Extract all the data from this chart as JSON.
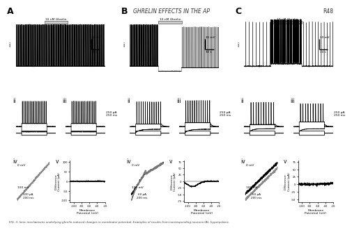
{
  "title": "GHRELIN EFFECTS IN THE AP",
  "page_label": "R48",
  "col_labels": [
    "A",
    "B",
    "C"
  ],
  "scale_bar_mv": "20 mV",
  "scale_bar_s": "30 s",
  "ghrelin_label": "10 nM Ghrelin",
  "current_step_labels": [
    "250 pA\n250 ms",
    "250 pA\n250 ms",
    "250 pA\n250 ms"
  ],
  "iv_current_labels": [
    "100 pA\n200 ms",
    "60 pA\n200 ms",
    "60 pA\n200 ms"
  ],
  "voltage_0mV": "0 mV",
  "voltage_100mV": "100 mV",
  "xlabel_iv": "Membrane\nPotential (mV)",
  "ylabel_iv_A": "Difference\nCurrent (pA)",
  "ylabel_iv_B": "Difference\nCurrent (pA)",
  "ylabel_iv_C": "Difference\nCurrent (pA)",
  "iv_yticks_A": [
    100,
    50,
    0,
    -50,
    -100
  ],
  "iv_yticks_B": [
    75,
    50,
    25,
    0,
    -25,
    -50,
    -75
  ],
  "iv_yticks_C": [
    75,
    50,
    25,
    0,
    -25,
    -50
  ],
  "iv_xticks": [
    -100,
    -80,
    -60,
    -40,
    -20
  ],
  "iv_ylim_A": [
    -110,
    110
  ],
  "iv_ylim_B": [
    -80,
    80
  ],
  "iv_ylim_C": [
    -60,
    80
  ]
}
